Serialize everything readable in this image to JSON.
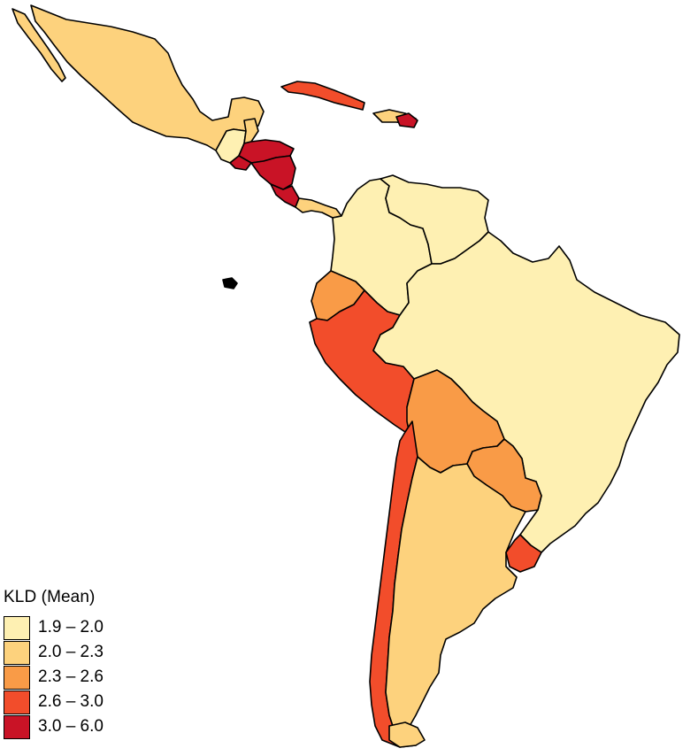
{
  "legend": {
    "title": "KLD (Mean)",
    "classes": [
      {
        "label": "1.9 – 2.0",
        "color": "#FEF0B2"
      },
      {
        "label": "2.0 – 2.3",
        "color": "#FDD27D"
      },
      {
        "label": "2.3 – 2.6",
        "color": "#F99B47"
      },
      {
        "label": "2.6 – 3.0",
        "color": "#F24D2B"
      },
      {
        "label": "3.0 – 6.0",
        "color": "#C91326"
      }
    ]
  },
  "countries": [
    {
      "name": "Mexico",
      "class": 1
    },
    {
      "name": "Guatemala",
      "class": 0
    },
    {
      "name": "Belize",
      "class": 1
    },
    {
      "name": "Honduras",
      "class": 4
    },
    {
      "name": "El Salvador",
      "class": 4
    },
    {
      "name": "Nicaragua",
      "class": 4
    },
    {
      "name": "Costa Rica",
      "class": 4
    },
    {
      "name": "Panama",
      "class": 1
    },
    {
      "name": "Cuba",
      "class": 3
    },
    {
      "name": "Dominican Republic",
      "class": 1
    },
    {
      "name": "Haiti",
      "class": 1
    },
    {
      "name": "Puerto Rico",
      "class": 4
    },
    {
      "name": "Colombia",
      "class": 0
    },
    {
      "name": "Venezuela",
      "class": 0
    },
    {
      "name": "Ecuador",
      "class": 2
    },
    {
      "name": "Peru",
      "class": 3
    },
    {
      "name": "Brazil",
      "class": 0
    },
    {
      "name": "Bolivia",
      "class": 2
    },
    {
      "name": "Paraguay",
      "class": 2
    },
    {
      "name": "Chile",
      "class": 3
    },
    {
      "name": "Argentina",
      "class": 1
    },
    {
      "name": "Uruguay",
      "class": 3
    }
  ]
}
